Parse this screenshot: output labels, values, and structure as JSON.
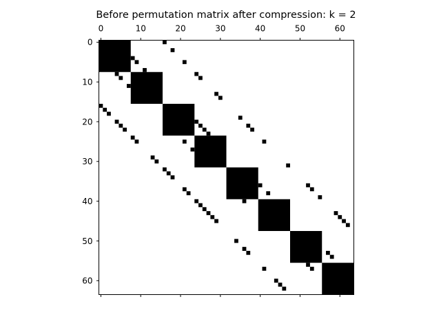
{
  "figure": {
    "title": "Before permutation matrix after compression: k = 2"
  },
  "chart_data": {
    "type": "heatmap",
    "title": "Before permutation matrix after compression: k = 2",
    "xlabel": "",
    "ylabel": "",
    "xlim": [
      -0.5,
      63.5
    ],
    "ylim": [
      63.5,
      -0.5
    ],
    "x_axis_position": "top",
    "y_axis_inverted": true,
    "grid": false,
    "colors": {
      "filled": "#000000",
      "empty": "#ffffff"
    },
    "x_ticks": [
      0,
      10,
      20,
      30,
      40,
      50,
      60
    ],
    "y_ticks": [
      0,
      10,
      20,
      30,
      40,
      50,
      60
    ],
    "blocks": [
      {
        "rows": [
          0,
          7
        ],
        "cols": [
          0,
          7
        ]
      },
      {
        "rows": [
          8,
          15
        ],
        "cols": [
          8,
          15
        ]
      },
      {
        "rows": [
          16,
          23
        ],
        "cols": [
          16,
          23
        ]
      },
      {
        "rows": [
          24,
          31
        ],
        "cols": [
          24,
          31
        ]
      },
      {
        "rows": [
          32,
          39
        ],
        "cols": [
          32,
          39
        ]
      },
      {
        "rows": [
          40,
          47
        ],
        "cols": [
          40,
          47
        ]
      },
      {
        "rows": [
          48,
          55
        ],
        "cols": [
          48,
          55
        ]
      },
      {
        "rows": [
          56,
          63
        ],
        "cols": [
          56,
          63
        ]
      }
    ],
    "points": [
      [
        0,
        16
      ],
      [
        2,
        18
      ],
      [
        4,
        8
      ],
      [
        5,
        9
      ],
      [
        5,
        21
      ],
      [
        7,
        11
      ],
      [
        8,
        24
      ],
      [
        9,
        25
      ],
      [
        8,
        4
      ],
      [
        9,
        5
      ],
      [
        11,
        7
      ],
      [
        13,
        29
      ],
      [
        14,
        30
      ],
      [
        16,
        0
      ],
      [
        17,
        1
      ],
      [
        18,
        2
      ],
      [
        19,
        35
      ],
      [
        20,
        4
      ],
      [
        21,
        5
      ],
      [
        21,
        37
      ],
      [
        22,
        6
      ],
      [
        22,
        38
      ],
      [
        24,
        8
      ],
      [
        25,
        9
      ],
      [
        25,
        41
      ],
      [
        20,
        24
      ],
      [
        21,
        25
      ],
      [
        22,
        26
      ],
      [
        23,
        27
      ],
      [
        25,
        21
      ],
      [
        27,
        23
      ],
      [
        29,
        13
      ],
      [
        30,
        14
      ],
      [
        31,
        47
      ],
      [
        32,
        16
      ],
      [
        33,
        17
      ],
      [
        34,
        18
      ],
      [
        36,
        40
      ],
      [
        36,
        52
      ],
      [
        37,
        21
      ],
      [
        37,
        53
      ],
      [
        38,
        22
      ],
      [
        38,
        42
      ],
      [
        39,
        55
      ],
      [
        40,
        24
      ],
      [
        40,
        36
      ],
      [
        41,
        25
      ],
      [
        42,
        26
      ],
      [
        43,
        27
      ],
      [
        43,
        59
      ],
      [
        44,
        28
      ],
      [
        44,
        60
      ],
      [
        45,
        29
      ],
      [
        45,
        61
      ],
      [
        46,
        62
      ],
      [
        49,
        48
      ],
      [
        50,
        34
      ],
      [
        50,
        48
      ],
      [
        51,
        48
      ],
      [
        52,
        36
      ],
      [
        52,
        48
      ],
      [
        53,
        37
      ],
      [
        53,
        48
      ],
      [
        53,
        57
      ],
      [
        54,
        48
      ],
      [
        54,
        58
      ],
      [
        56,
        52
      ],
      [
        57,
        41
      ],
      [
        57,
        53
      ],
      [
        60,
        44
      ],
      [
        61,
        45
      ],
      [
        62,
        46
      ]
    ]
  }
}
